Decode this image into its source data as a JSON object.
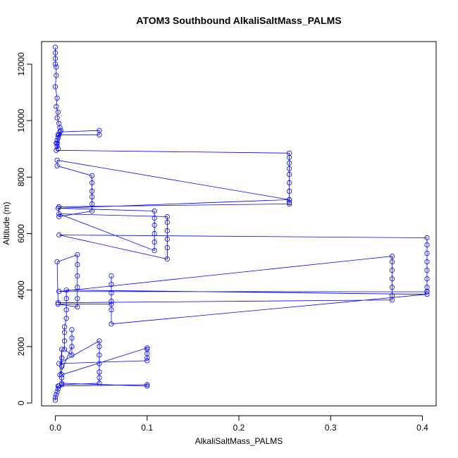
{
  "chart_data": {
    "type": "line",
    "title": "ATOM3 Southbound AlkaliSaltMass_PALMS",
    "xlabel": "AlkaliSaltMass_PALMS",
    "ylabel": "Altitude (m)",
    "xlim": [
      -0.015,
      0.415
    ],
    "ylim": [
      -100,
      12800
    ],
    "x_ticks": [
      0,
      0.1,
      0.2,
      0.3,
      0.4
    ],
    "x_tick_labels": [
      "0.0",
      "0.1",
      "0.2",
      "0.3",
      "0.4"
    ],
    "y_ticks": [
      0,
      2000,
      4000,
      6000,
      8000,
      10000,
      12000
    ],
    "y_tick_labels": [
      "0",
      "2000",
      "4000",
      "6000",
      "8000",
      "10000",
      "12000"
    ],
    "grid": false,
    "legend": "none",
    "series_color": "#0000ff",
    "series": [
      {
        "marker": "open-circle",
        "x": [
          0.0,
          0.0,
          0.0,
          0.0,
          0.001,
          0.001,
          0.0,
          0.002,
          0.001,
          0.003,
          0.002,
          0.004,
          0.005,
          0.006,
          0.005,
          0.004,
          0.003,
          0.002,
          0.001,
          0.002,
          0.003,
          0.005,
          0.048,
          0.048,
          0.003,
          0.002,
          0.001,
          0.255,
          0.255,
          0.255,
          0.255,
          0.255,
          0.255,
          0.255,
          0.255,
          0.002,
          0.002,
          0.04,
          0.04,
          0.04,
          0.04,
          0.04,
          0.04,
          0.004,
          0.004,
          0.255,
          0.255,
          0.255,
          0.003,
          0.108,
          0.108,
          0.108,
          0.108,
          0.108,
          0.108,
          0.004,
          0.122,
          0.122,
          0.122,
          0.122,
          0.122,
          0.122,
          0.004,
          0.405,
          0.405,
          0.405,
          0.405,
          0.405,
          0.405,
          0.405,
          0.405,
          0.405,
          0.004,
          0.367,
          0.367,
          0.367,
          0.367,
          0.367,
          0.367,
          0.367,
          0.003,
          0.002,
          0.024,
          0.024,
          0.024,
          0.024,
          0.024,
          0.024,
          0.003,
          0.061,
          0.061,
          0.061,
          0.061,
          0.061,
          0.061,
          0.061,
          0.405,
          0.012,
          0.012,
          0.012,
          0.012,
          0.01,
          0.01,
          0.01,
          0.01,
          0.018,
          0.018,
          0.018,
          0.018,
          0.005,
          0.007,
          0.007,
          0.007,
          0.007,
          0.1,
          0.1,
          0.1,
          0.1,
          0.1,
          0.004,
          0.048,
          0.048,
          0.048,
          0.048,
          0.048,
          0.048,
          0.048,
          0.007,
          0.007,
          0.007,
          0.1,
          0.1,
          0.004,
          0.003,
          0.003,
          0.002,
          0.001,
          0.0,
          0.0
        ],
        "y": [
          12600,
          12400,
          12200,
          12000,
          11900,
          11600,
          11200,
          10800,
          10500,
          10300,
          10100,
          9900,
          9750,
          9650,
          9600,
          9500,
          9400,
          9300,
          9200,
          9100,
          9000,
          9600,
          9650,
          9500,
          9500,
          9200,
          8950,
          8850,
          8700,
          8500,
          8300,
          8100,
          7800,
          7500,
          7200,
          8600,
          8400,
          8050,
          7800,
          7500,
          7300,
          7050,
          6800,
          6600,
          6950,
          7050,
          7100,
          7200,
          6900,
          6800,
          6550,
          6300,
          6000,
          5700,
          5400,
          6700,
          6600,
          6400,
          6100,
          5800,
          5500,
          5100,
          5950,
          5850,
          5600,
          5300,
          5000,
          4700,
          4400,
          4100,
          3950,
          3940,
          3950,
          5200,
          5000,
          4700,
          4400,
          4100,
          3800,
          3650,
          3550,
          5000,
          5250,
          4900,
          4500,
          4100,
          3700,
          3400,
          3500,
          3500,
          4500,
          4200,
          3900,
          3600,
          3300,
          2800,
          3850,
          4000,
          3700,
          3300,
          3000,
          2700,
          2500,
          2200,
          1900,
          1700,
          2600,
          2300,
          2000,
          1000,
          1900,
          1600,
          1300,
          1000,
          1950,
          1900,
          1750,
          1600,
          1500,
          1400,
          2200,
          2000,
          1700,
          1400,
          1100,
          900,
          700,
          650,
          900,
          700,
          600,
          650,
          600,
          600,
          500,
          400,
          300,
          200,
          100
        ]
      }
    ]
  }
}
